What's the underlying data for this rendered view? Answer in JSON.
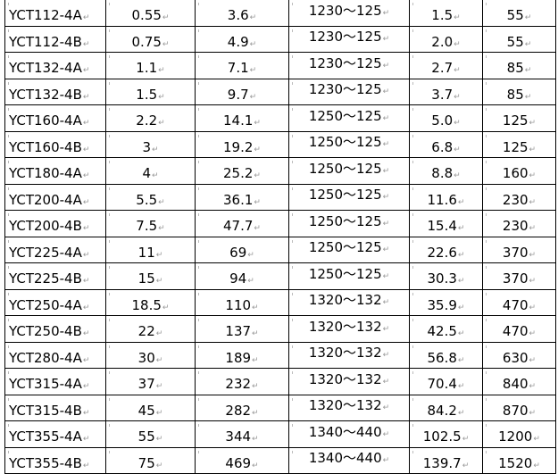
{
  "table": {
    "rows": [
      [
        "YCT112-4A",
        "0.55",
        "3.6",
        "1230～125",
        "1.5",
        "55"
      ],
      [
        "YCT112-4B",
        "0.75",
        "4.9",
        "1230～125",
        "2.0",
        "55"
      ],
      [
        "YCT132-4A",
        "1.1",
        "7.1",
        "1230～125",
        "2.7",
        "85"
      ],
      [
        "YCT132-4B",
        "1.5",
        "9.7",
        "1230～125",
        "3.7",
        "85"
      ],
      [
        "YCT160-4A",
        "2.2",
        "14.1",
        "1250～125",
        "5.0",
        "125"
      ],
      [
        "YCT160-4B",
        "3",
        "19.2",
        "1250～125",
        "6.8",
        "125"
      ],
      [
        "YCT180-4A",
        "4",
        "25.2",
        "1250～125",
        "8.8",
        "160"
      ],
      [
        "YCT200-4A",
        "5.5",
        "36.1",
        "1250～125",
        "11.6",
        "230"
      ],
      [
        "YCT200-4B",
        "7.5",
        "47.7",
        "1250～125",
        "15.4",
        "230"
      ],
      [
        "YCT225-4A",
        "11",
        "69",
        "1250～125",
        "22.6",
        "370"
      ],
      [
        "YCT225-4B",
        "15",
        "94",
        "1250～125",
        "30.3",
        "370"
      ],
      [
        "YCT250-4A",
        "18.5",
        "110",
        "1320～132",
        "35.9",
        "470"
      ],
      [
        "YCT250-4B",
        "22",
        "137",
        "1320～132",
        "42.5",
        "470"
      ],
      [
        "YCT280-4A",
        "30",
        "189",
        "1320～132",
        "56.8",
        "630"
      ],
      [
        "YCT315-4A",
        "37",
        "232",
        "1320～132",
        "70.4",
        "840"
      ],
      [
        "YCT315-4B",
        "45",
        "282",
        "1320～132",
        "84.2",
        "870"
      ],
      [
        "YCT355-4A",
        "55",
        "344",
        "1340～440",
        "102.5",
        "1200"
      ],
      [
        "YCT355-4B",
        "75",
        "469",
        "1340～440",
        "139.7",
        "1520"
      ]
    ]
  }
}
